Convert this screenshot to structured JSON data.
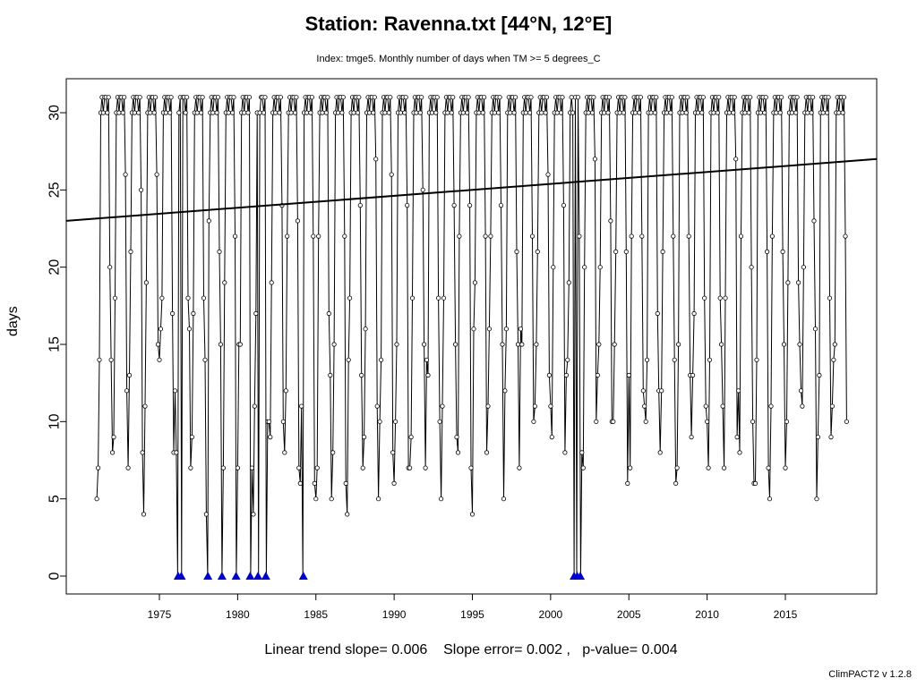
{
  "chart_data": {
    "type": "line",
    "title": "Station: Ravenna.txt [44°N, 12°E]",
    "subtitle": "Index: tmge5. Monthly number of days when TM >= 5 degrees_C",
    "xlabel": "",
    "ylabel": "days",
    "xlim": [
      1971,
      2019
    ],
    "ylim": [
      0,
      31
    ],
    "x_ticks": [
      1975,
      1980,
      1985,
      1990,
      1995,
      2000,
      2005,
      2010,
      2015
    ],
    "y_ticks": [
      0,
      5,
      10,
      15,
      20,
      25,
      30
    ],
    "monthly_profile_typical": [
      9,
      11,
      18,
      30,
      31,
      30,
      31,
      31,
      30,
      31,
      22,
      11
    ],
    "zero_markers_years": [
      1976.2,
      1976.4,
      1978.1,
      1979.0,
      1979.9,
      1980.8,
      1981.3,
      1981.8,
      1984.2,
      2001.5,
      2001.7,
      2001.9
    ],
    "trend": {
      "start": [
        1971,
        23.0
      ],
      "end": [
        2019,
        27.0
      ]
    },
    "footer": "Linear trend slope= 0.006    Slope error= 0.002 ,   p-value= 0.004",
    "version": "ClimPACT2 v 1.2.8",
    "colors": {
      "zero_marker": "#0000cc",
      "line": "#000000"
    }
  }
}
